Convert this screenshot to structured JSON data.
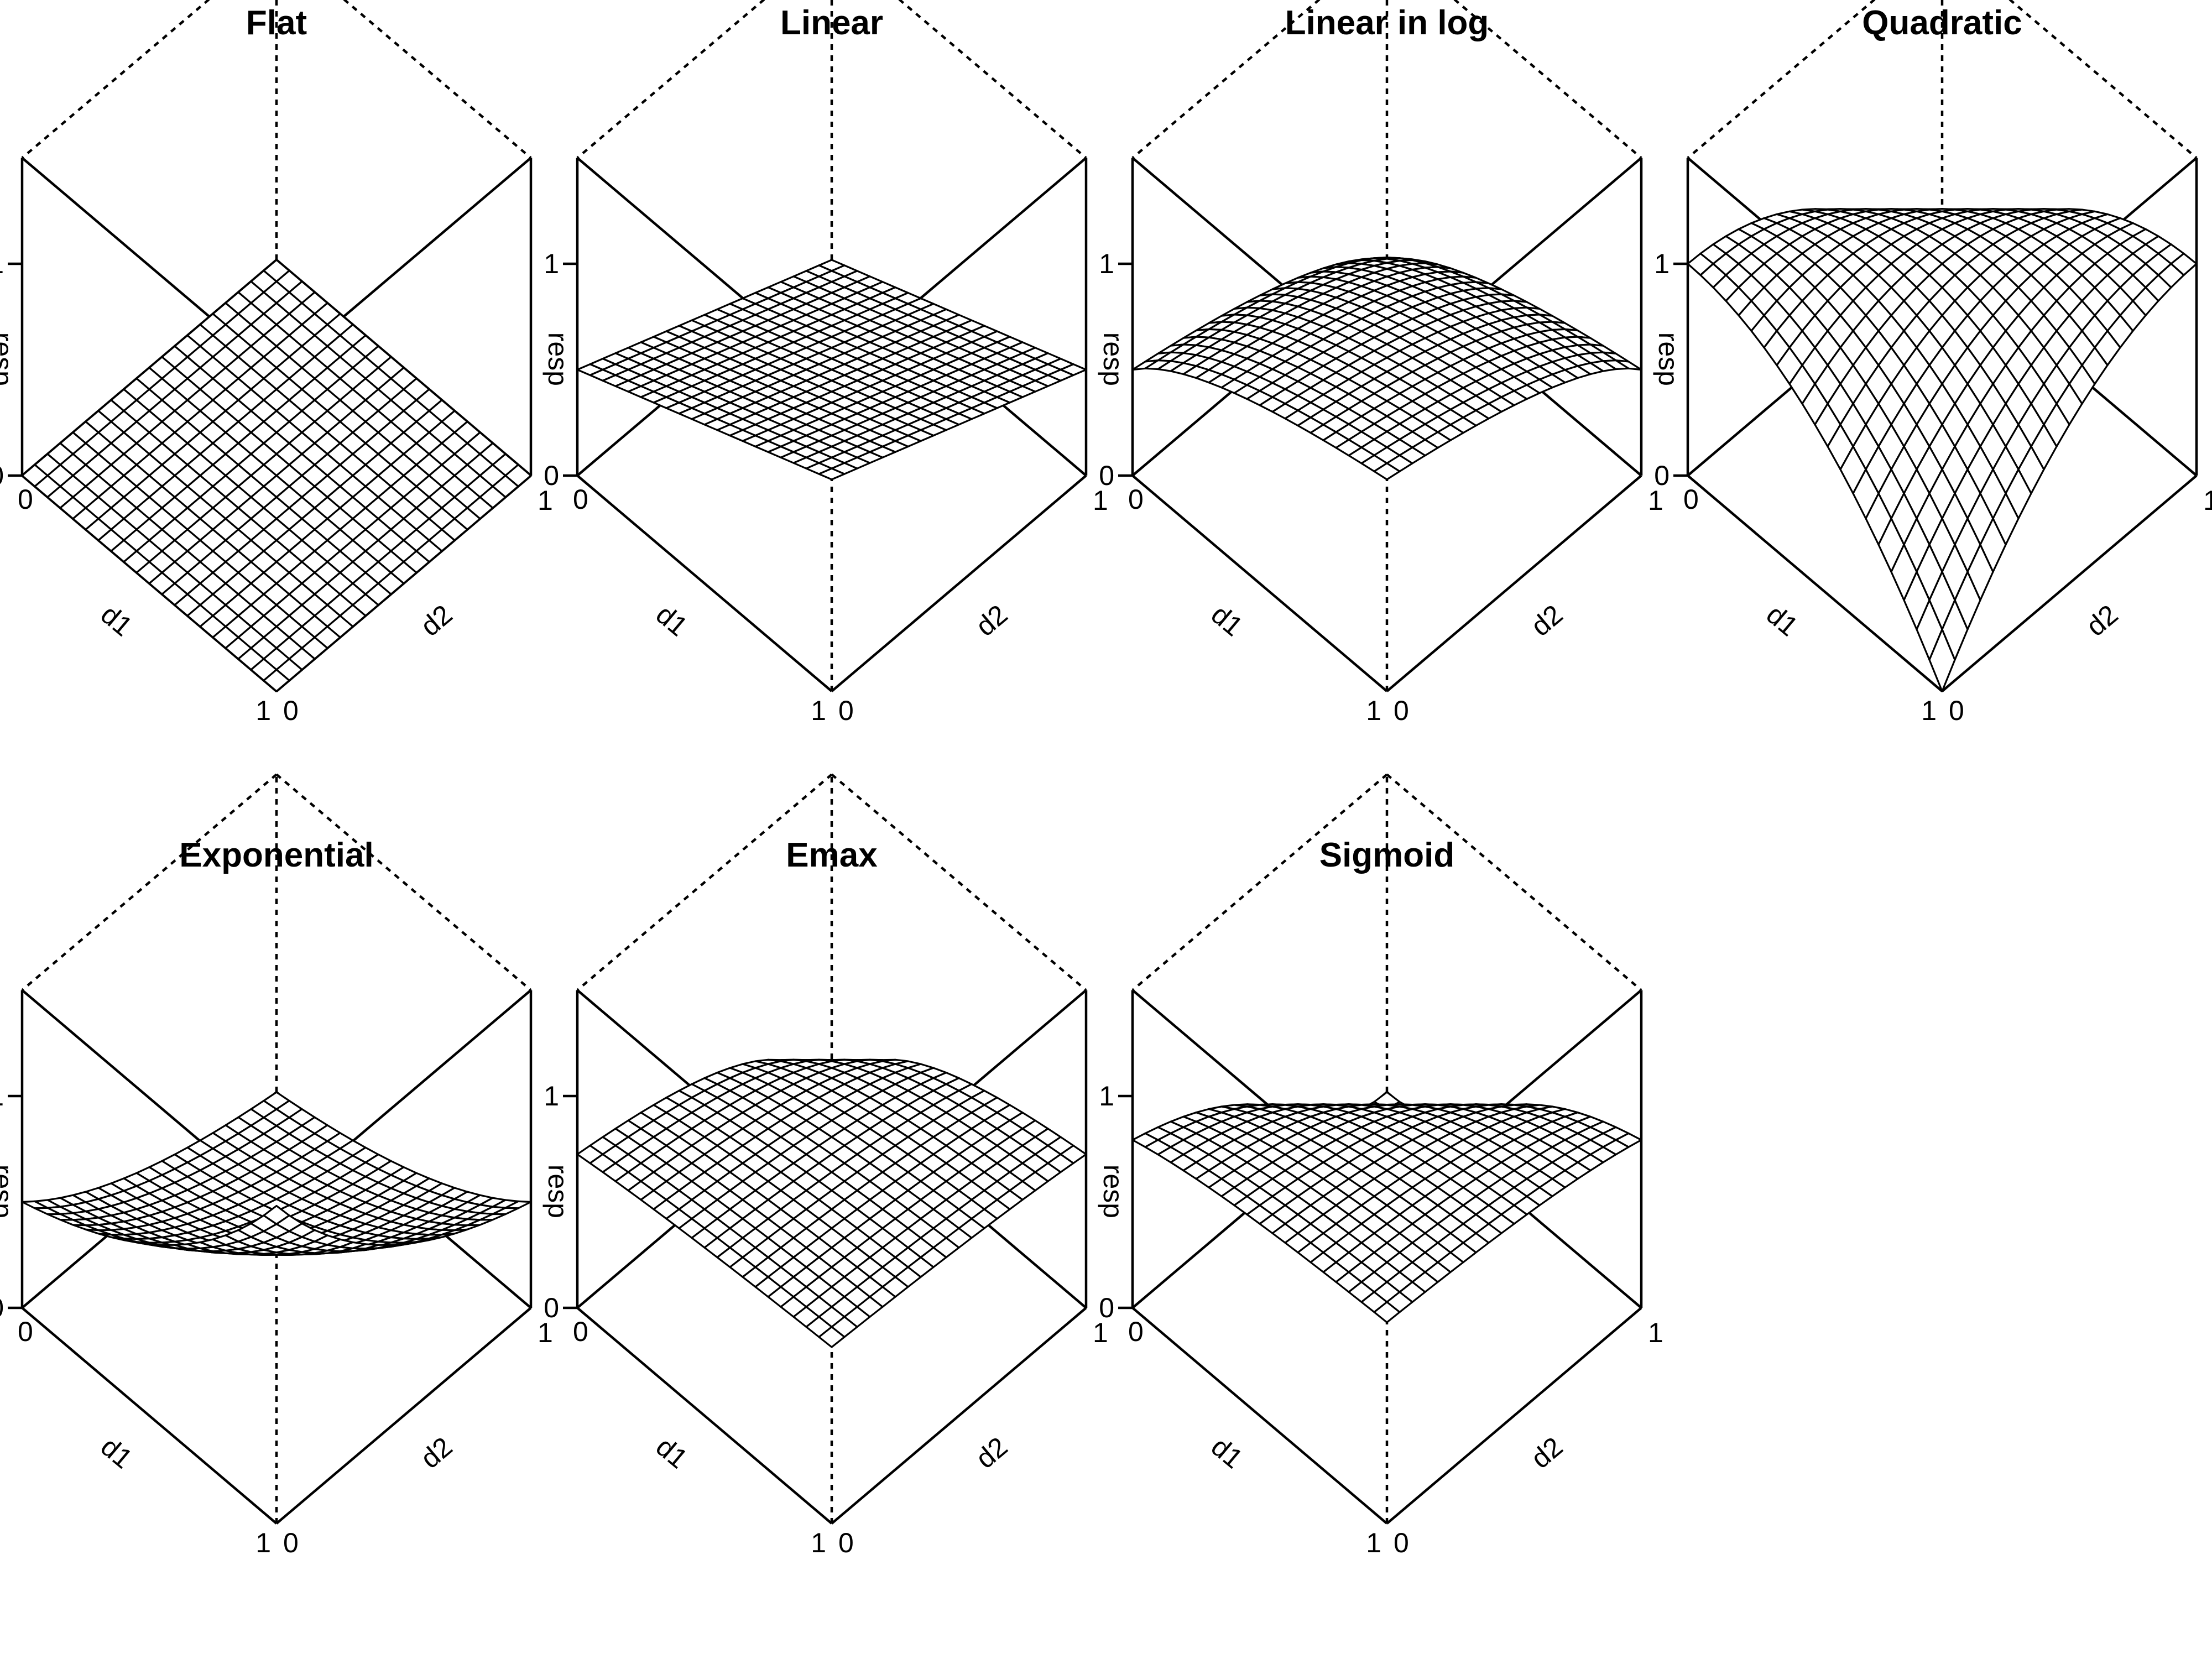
{
  "chart_data": [
    {
      "type": "surface",
      "title": "Flat",
      "model": "flat",
      "xlabel": "d1",
      "ylabel": "d2",
      "zlabel": "resp",
      "xlim": [
        0,
        1
      ],
      "ylim": [
        0,
        1
      ],
      "zlim": [
        0,
        1.5
      ],
      "z_tick_labels": [
        "0",
        "1"
      ],
      "x_tick_labels": [
        "0",
        "1"
      ],
      "y_tick_labels": [
        "0",
        "1"
      ],
      "grid": [
        21,
        21
      ],
      "response_at": {
        "d1=0,d2=0": 0.0,
        "d1=1,d2=0": 0.0,
        "d1=0,d2=1": 0.0,
        "d1=1,d2=1": 0.0
      }
    },
    {
      "type": "surface",
      "title": "Linear",
      "model": "linear",
      "xlabel": "d1",
      "ylabel": "d2",
      "zlabel": "resp",
      "xlim": [
        0,
        1
      ],
      "ylim": [
        0,
        1
      ],
      "zlim": [
        0,
        1.5
      ],
      "z_tick_labels": [
        "0",
        "1"
      ],
      "x_tick_labels": [
        "0",
        "1"
      ],
      "y_tick_labels": [
        "0",
        "1"
      ],
      "grid": [
        21,
        21
      ],
      "response_at": {
        "d1=0,d2=0": 0.0,
        "d1=1,d2=0": 0.5,
        "d1=0,d2=1": 0.5,
        "d1=1,d2=1": 1.0
      }
    },
    {
      "type": "surface",
      "title": "Linear in log",
      "model": "linlog",
      "xlabel": "d1",
      "ylabel": "d2",
      "zlabel": "resp",
      "xlim": [
        0,
        1
      ],
      "ylim": [
        0,
        1
      ],
      "zlim": [
        0,
        1.5
      ],
      "z_tick_labels": [
        "0",
        "1"
      ],
      "x_tick_labels": [
        "0",
        "1"
      ],
      "y_tick_labels": [
        "0",
        "1"
      ],
      "grid": [
        21,
        21
      ],
      "response_at": {
        "d1=0,d2=0": 0.0,
        "d1=1,d2=0": 0.5,
        "d1=0,d2=1": 0.5,
        "d1=1,d2=1": 1.0
      }
    },
    {
      "type": "surface",
      "title": "Quadratic",
      "model": "quadratic",
      "xlabel": "d1",
      "ylabel": "d2",
      "zlabel": "resp",
      "xlim": [
        0,
        1
      ],
      "ylim": [
        0,
        1
      ],
      "zlim": [
        0,
        1.5
      ],
      "z_tick_labels": [
        "0",
        "1"
      ],
      "x_tick_labels": [
        "0",
        "1"
      ],
      "y_tick_labels": [
        "0",
        "1"
      ],
      "grid": [
        21,
        21
      ],
      "response_at": {
        "d1=0,d2=0": 0.0,
        "d1=0.5,d2=0.5": 1.0,
        "d1=1,d2=1": 0.0
      }
    },
    {
      "type": "surface",
      "title": "Exponential",
      "model": "exponential",
      "xlabel": "d1",
      "ylabel": "d2",
      "zlabel": "resp",
      "xlim": [
        0,
        1
      ],
      "ylim": [
        0,
        1
      ],
      "zlim": [
        0,
        1.5
      ],
      "z_tick_labels": [
        "0",
        "1"
      ],
      "x_tick_labels": [
        "0",
        "1"
      ],
      "y_tick_labels": [
        "0",
        "1"
      ],
      "grid": [
        21,
        21
      ],
      "response_at": {
        "d1=0,d2=0": 0.0,
        "d1=1,d2=0": 0.25,
        "d1=0,d2=1": 0.25,
        "d1=1,d2=1": 1.0
      }
    },
    {
      "type": "surface",
      "title": "Emax",
      "model": "emax",
      "xlabel": "d1",
      "ylabel": "d2",
      "zlabel": "resp",
      "xlim": [
        0,
        1
      ],
      "ylim": [
        0,
        1
      ],
      "zlim": [
        0,
        1.5
      ],
      "z_tick_labels": [
        "0",
        "1"
      ],
      "x_tick_labels": [
        "0",
        "1"
      ],
      "y_tick_labels": [
        "0",
        "1"
      ],
      "grid": [
        21,
        21
      ],
      "response_at": {
        "d1=0,d2=0": 0.0,
        "d1=1,d2=0": 0.65,
        "d1=0,d2=1": 0.65,
        "d1=1,d2=1": 1.0
      }
    },
    {
      "type": "surface",
      "title": "Sigmoid",
      "model": "sigmoid",
      "xlabel": "d1",
      "ylabel": "d2",
      "zlabel": "resp",
      "xlim": [
        0,
        1
      ],
      "ylim": [
        0,
        1
      ],
      "zlim": [
        0,
        1.5
      ],
      "z_tick_labels": [
        "0",
        "1"
      ],
      "x_tick_labels": [
        "0",
        "1"
      ],
      "y_tick_labels": [
        "0",
        "1"
      ],
      "grid": [
        21,
        21
      ],
      "response_at": {
        "d1=0,d2=0": 0.0,
        "d1=1,d2=0": 0.6,
        "d1=0,d2=1": 0.6,
        "d1=1,d2=1": 0.95
      }
    }
  ]
}
